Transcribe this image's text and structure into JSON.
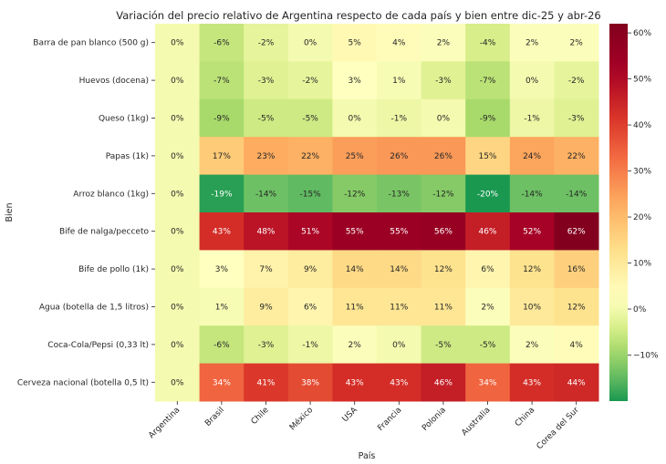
{
  "chart_data": {
    "type": "heatmap",
    "title": "Variación del precio relativo de Argentina respecto de cada país y bien entre dic-25 y abr-26",
    "xlabel": "País",
    "ylabel": "Bien",
    "columns": [
      "Argentina",
      "Brasil",
      "Chile",
      "México",
      "USA",
      "Francia",
      "Polonia",
      "Australia",
      "China",
      "Corea del Sur"
    ],
    "rows": [
      "Barra de pan blanco (500 g)",
      "Huevos (docena)",
      "Queso (1kg)",
      "Papas (1k)",
      "Arroz blanco (1kg)",
      "Bife de nalga/pecceto",
      "Bife de pollo (1k)",
      "Agua (botella de 1,5 litros)",
      "Coca-Cola/Pepsi (0,33 lt)",
      "Cerveza nacional (botella 0,5 lt)"
    ],
    "values": [
      [
        0,
        -6,
        -2,
        0,
        5,
        4,
        2,
        -4,
        2,
        2
      ],
      [
        0,
        -7,
        -3,
        -2,
        3,
        1,
        -3,
        -7,
        0,
        -2
      ],
      [
        0,
        -9,
        -5,
        -5,
        0,
        -1,
        0,
        -9,
        -1,
        -3
      ],
      [
        0,
        17,
        23,
        22,
        25,
        26,
        26,
        15,
        24,
        22
      ],
      [
        0,
        -19,
        -14,
        -15,
        -12,
        -13,
        -12,
        -20,
        -14,
        -14
      ],
      [
        0,
        43,
        48,
        51,
        55,
        55,
        56,
        46,
        52,
        62
      ],
      [
        0,
        3,
        7,
        9,
        14,
        14,
        12,
        6,
        12,
        16
      ],
      [
        0,
        1,
        9,
        6,
        11,
        11,
        11,
        2,
        10,
        12
      ],
      [
        0,
        -6,
        -3,
        -1,
        2,
        0,
        -5,
        -5,
        2,
        4
      ],
      [
        0,
        34,
        41,
        38,
        43,
        43,
        46,
        34,
        43,
        44
      ]
    ],
    "value_suffix": "%",
    "colormap": "RdYlGn_r",
    "colorbar": {
      "range": [
        -20,
        62
      ],
      "ticks": [
        -10,
        0,
        10,
        20,
        30,
        40,
        50,
        60
      ],
      "tick_labels": [
        "−10%",
        "0%",
        "10%",
        "20%",
        "30%",
        "40%",
        "50%",
        "60%"
      ]
    }
  }
}
